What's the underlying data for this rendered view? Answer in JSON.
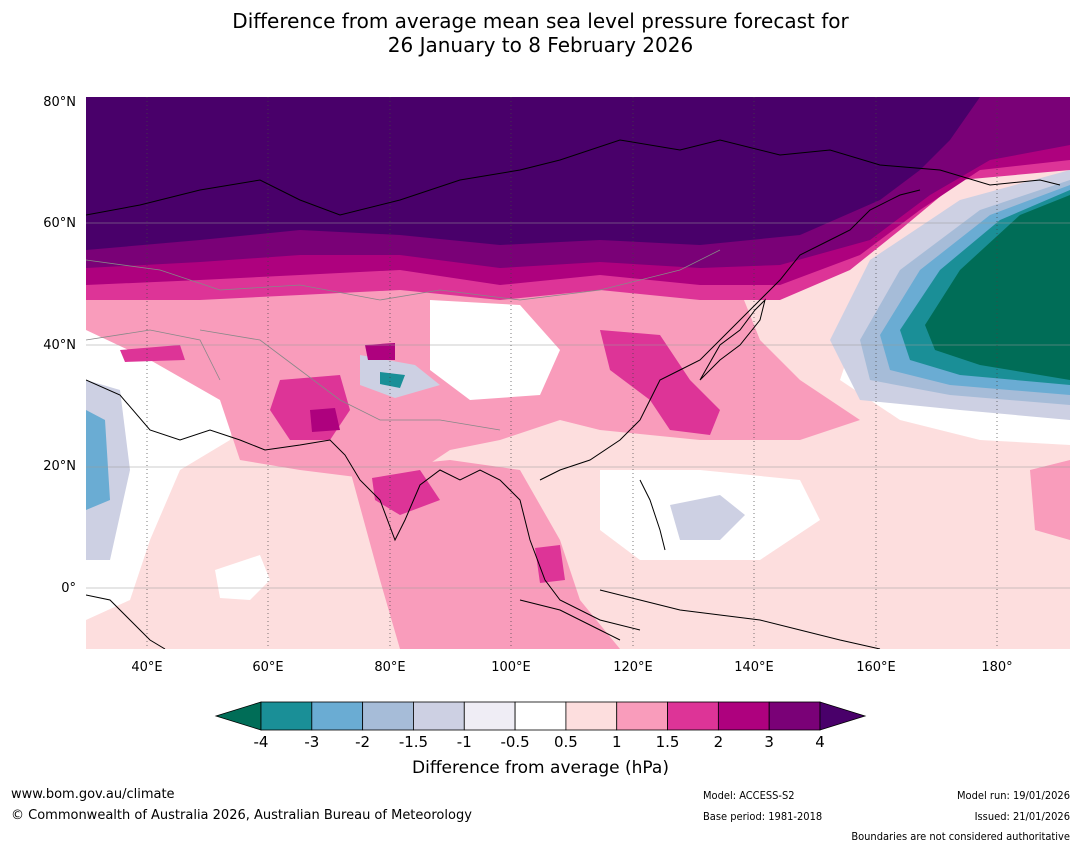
{
  "title": {
    "line1": "Difference from average mean sea level pressure forecast for",
    "line2": "26 January to 8 February 2026"
  },
  "map": {
    "lat_labels": [
      "80°N",
      "60°N",
      "40°N",
      "20°N",
      "0°"
    ],
    "lon_labels": [
      "40°E",
      "60°E",
      "80°E",
      "100°E",
      "120°E",
      "140°E",
      "160°E",
      "180°"
    ]
  },
  "colorbar": {
    "title": "Difference from average (hPa)",
    "ticks": [
      "-4",
      "-3",
      "-2",
      "-1.5",
      "-1",
      "-0.5",
      "0.5",
      "1",
      "1.5",
      "2",
      "3",
      "4"
    ],
    "colors": {
      "below_min": "#006d57",
      "bands": [
        "#1a8f97",
        "#6aacd3",
        "#a6bcd8",
        "#cdd0e3",
        "#efedf5",
        "#ffffff",
        "#fddede",
        "#f99cbb",
        "#dd3497",
        "#ae017e",
        "#7a0177"
      ],
      "above_max": "#49006a"
    }
  },
  "footer": {
    "url": "www.bom.gov.au/climate",
    "copyright": "© Commonwealth of Australia 2026, Australian Bureau of Meteorology",
    "model": "Model: ACCESS-S2",
    "base_period": "Base period: 1981-2018",
    "model_run": "Model run: 19/01/2026",
    "issued": "Issued: 21/01/2026",
    "boundaries": "Boundaries are not considered authoritative"
  }
}
